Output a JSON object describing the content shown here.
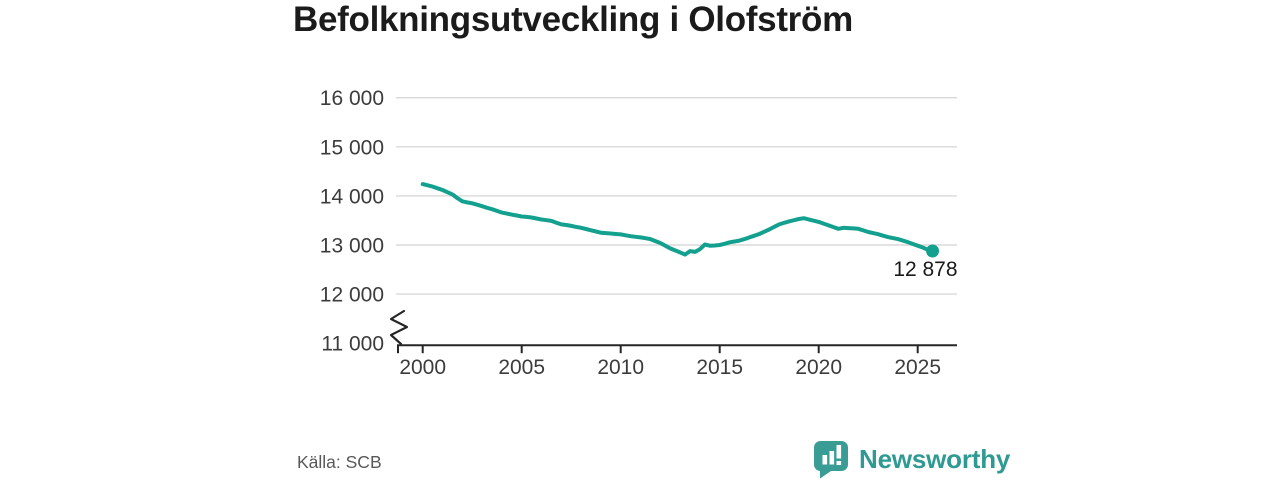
{
  "title": "Befolkningsutveckling i Olofström",
  "source": "Källa: SCB",
  "brand": {
    "name": "Newsworthy"
  },
  "colors": {
    "line": "#13a08f",
    "grid": "#d9d9d9",
    "axis": "#262626",
    "tick_text": "#3c3c3c",
    "title_text": "#1b1b1b",
    "source_text": "#595959",
    "annotation_text": "#1a1a1a",
    "brand_teal": "#3a9d95",
    "brand_text": "#2f9a92"
  },
  "chart_data": {
    "type": "line",
    "title": "Befolkningsutveckling i Olofström",
    "xlabel": "",
    "ylabel": "",
    "grid": "horizontal",
    "y_axis_break": true,
    "ylim": [
      11000,
      16000
    ],
    "xlim": [
      1998.7,
      2027
    ],
    "x_ticks": [
      2000,
      2005,
      2010,
      2015,
      2020,
      2025
    ],
    "y_ticks": [
      {
        "value": 16000,
        "label": "16 000"
      },
      {
        "value": 15000,
        "label": "15 000"
      },
      {
        "value": 14000,
        "label": "14 000"
      },
      {
        "value": 13000,
        "label": "13 000"
      },
      {
        "value": 12000,
        "label": "12 000"
      },
      {
        "value": 11000,
        "label": "11 000"
      }
    ],
    "last_value": 12878,
    "last_value_label": "12 878",
    "series": [
      {
        "name": "Befolkning i Olofström",
        "x_start": 2000,
        "x_step": 0.25,
        "values": [
          14240,
          14215,
          14190,
          14155,
          14120,
          14075,
          14030,
          13955,
          13890,
          13868,
          13850,
          13820,
          13790,
          13758,
          13730,
          13695,
          13660,
          13640,
          13620,
          13600,
          13580,
          13572,
          13560,
          13540,
          13520,
          13505,
          13490,
          13455,
          13420,
          13408,
          13390,
          13368,
          13350,
          13325,
          13300,
          13275,
          13250,
          13242,
          13235,
          13225,
          13215,
          13198,
          13180,
          13168,
          13155,
          13138,
          13120,
          13080,
          13040,
          12985,
          12930,
          12890,
          12850,
          12805,
          12875,
          12860,
          12915,
          13010,
          12985,
          12990,
          13000,
          13025,
          13055,
          13072,
          13090,
          13120,
          13155,
          13190,
          13225,
          13270,
          13315,
          13368,
          13420,
          13450,
          13480,
          13505,
          13530,
          13545,
          13520,
          13495,
          13470,
          13435,
          13400,
          13365,
          13330,
          13350,
          13345,
          13338,
          13330,
          13298,
          13265,
          13242,
          13220,
          13190,
          13160,
          13140,
          13120,
          13090,
          13060,
          13020,
          12985,
          12950,
          12905,
          12878
        ]
      }
    ]
  }
}
